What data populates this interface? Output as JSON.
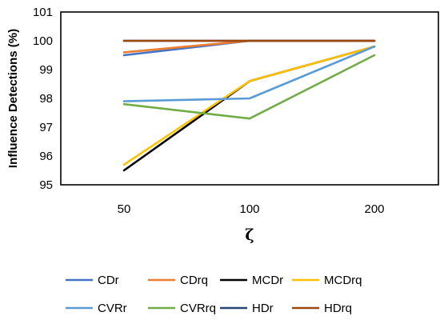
{
  "chart_data": {
    "type": "line",
    "categories": [
      "50",
      "100",
      "200"
    ],
    "xlabel": "ζ",
    "ylabel": "Influence Detections (%)",
    "ylim": [
      95,
      101
    ],
    "yticks": [
      95,
      96,
      97,
      98,
      99,
      100,
      101
    ],
    "grid": false,
    "legend_position": "bottom",
    "series": [
      {
        "name": "CDr",
        "color": "#4472C4",
        "values": [
          99.5,
          100.0,
          100.0
        ]
      },
      {
        "name": "CDrq",
        "color": "#ED7D31",
        "values": [
          99.6,
          100.0,
          100.0
        ]
      },
      {
        "name": "MCDr",
        "color": "#000000",
        "values": [
          95.5,
          98.6,
          99.8
        ]
      },
      {
        "name": "MCDrq",
        "color": "#FFC000",
        "values": [
          95.7,
          98.6,
          99.8
        ]
      },
      {
        "name": "CVRr",
        "color": "#5B9BD5",
        "values": [
          97.9,
          98.0,
          99.8
        ]
      },
      {
        "name": "CVRrq",
        "color": "#70AD47",
        "values": [
          97.8,
          97.3,
          99.5
        ]
      },
      {
        "name": "HDr",
        "color": "#264478",
        "values": [
          100.0,
          100.0,
          100.0
        ]
      },
      {
        "name": "HDrq",
        "color": "#9E480E",
        "values": [
          100.0,
          100.0,
          100.0
        ]
      }
    ]
  }
}
